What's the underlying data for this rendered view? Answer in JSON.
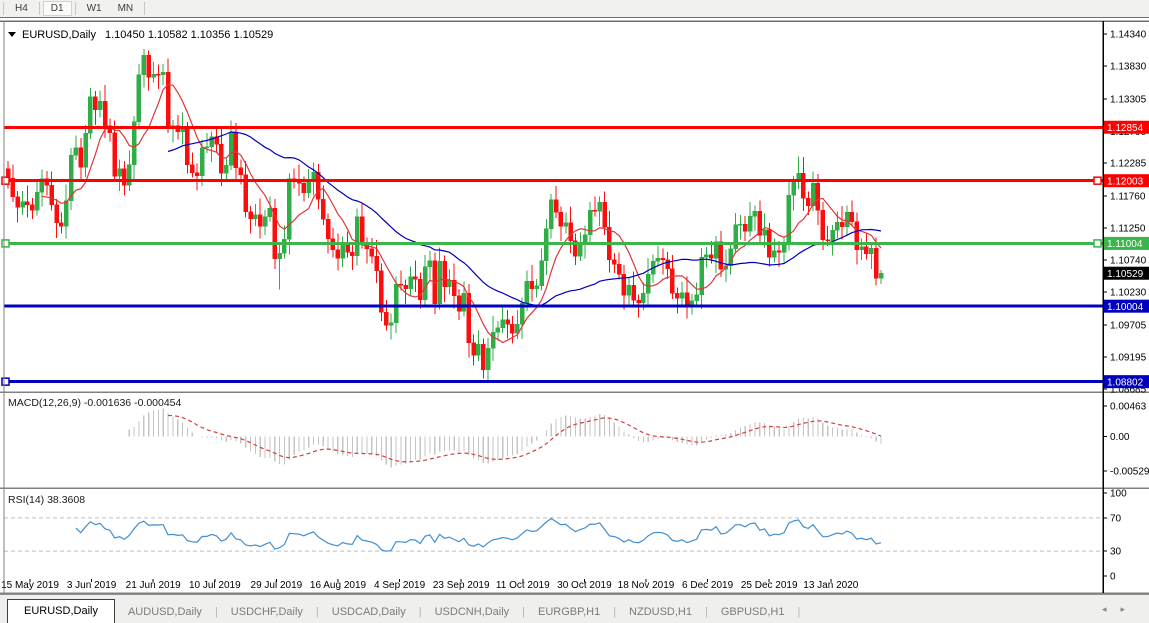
{
  "toolbar": {
    "buttons": [
      {
        "label": "H4",
        "active": false
      },
      {
        "label": "D1",
        "active": true
      },
      {
        "label": "W1",
        "active": false
      },
      {
        "label": "MN",
        "active": false
      }
    ]
  },
  "chart": {
    "title_marker": "▼",
    "symbol_label": "EURUSD,Daily",
    "ohlc_text": "1.10450 1.10582 1.10356 1.10529"
  },
  "chart_data": {
    "type": "candlestick",
    "symbol": "EURUSD",
    "timeframe": "Daily",
    "last_ohlc": {
      "open": 1.1045,
      "high": 1.10582,
      "low": 1.10356,
      "close": 1.10529
    },
    "y_axis": {
      "max": 1.14435,
      "min": 1.08653,
      "grid": false,
      "ticks": [
        "1.14340",
        "1.13830",
        "1.13305",
        "1.12790",
        "1.12285",
        "1.11760",
        "1.11250",
        "1.10740",
        "1.10230",
        "1.09705",
        "1.09195",
        "1.08685"
      ],
      "tick_values": [
        1.1434,
        1.1383,
        1.13305,
        1.1279,
        1.12285,
        1.1176,
        1.1125,
        1.1074,
        1.1023,
        1.09705,
        1.09195,
        1.08685
      ]
    },
    "x_labels": [
      "15 May 2019",
      "3 Jun 2019",
      "21 Jun 2019",
      "10 Jul 2019",
      "29 Jul 2019",
      "16 Aug 2019",
      "4 Sep 2019",
      "23 Sep 2019",
      "11 Oct 2019",
      "30 Oct 2019",
      "18 Nov 2019",
      "6 Dec 2019",
      "25 Dec 2019",
      "13 Jan 2020"
    ],
    "open_rule": "previous_close",
    "first_open": 1.1219,
    "closes": [
      1.1204,
      1.1175,
      1.1158,
      1.1167,
      1.1162,
      1.1153,
      1.1182,
      1.1203,
      1.1193,
      1.1162,
      1.1133,
      1.1128,
      1.1168,
      1.1241,
      1.1253,
      1.1222,
      1.1276,
      1.1334,
      1.1313,
      1.1327,
      1.1288,
      1.1277,
      1.1207,
      1.1219,
      1.1193,
      1.1226,
      1.1294,
      1.1369,
      1.14,
      1.1365,
      1.137,
      1.1369,
      1.1373,
      1.1285,
      1.1288,
      1.1278,
      1.1283,
      1.1226,
      1.1213,
      1.1208,
      1.1253,
      1.1254,
      1.127,
      1.1258,
      1.1212,
      1.1225,
      1.1277,
      1.1221,
      1.121,
      1.1151,
      1.114,
      1.1146,
      1.1128,
      1.1143,
      1.1156,
      1.1076,
      1.1085,
      1.1107,
      1.1203,
      1.12,
      1.1196,
      1.1181,
      1.12,
      1.1214,
      1.1171,
      1.1139,
      1.1108,
      1.109,
      1.1077,
      1.11,
      1.1086,
      1.1081,
      1.1143,
      1.1101,
      1.1092,
      1.108,
      1.1057,
      1.0991,
      1.097,
      1.0974,
      1.1035,
      1.1034,
      1.1028,
      1.1047,
      1.1043,
      1.1011,
      1.1063,
      1.1073,
      1.1004,
      1.1072,
      1.1031,
      1.1042,
      1.1017,
      1.0992,
      1.1021,
      1.0942,
      1.0922,
      1.094,
      1.0899,
      1.0933,
      1.0959,
      1.0966,
      1.0979,
      1.0972,
      1.0957,
      1.0972,
      1.1005,
      1.104,
      1.1028,
      1.1033,
      1.1073,
      1.1124,
      1.117,
      1.115,
      1.1128,
      1.1133,
      1.1105,
      1.108,
      1.1099,
      1.1114,
      1.1153,
      1.1152,
      1.1166,
      1.1126,
      1.1074,
      1.1067,
      1.1051,
      1.1018,
      1.1034,
      1.101,
      1.1006,
      1.1021,
      1.1051,
      1.1072,
      1.1077,
      1.1074,
      1.106,
      1.1021,
      1.1013,
      1.1022,
      1.1001,
      1.1009,
      1.1019,
      1.1078,
      1.1082,
      1.1077,
      1.1103,
      1.1059,
      1.1065,
      1.1092,
      1.113,
      1.1131,
      1.112,
      1.1144,
      1.1152,
      1.1113,
      1.1122,
      1.1078,
      1.1089,
      1.1086,
      1.1098,
      1.1177,
      1.1199,
      1.1212,
      1.1172,
      1.116,
      1.1196,
      1.1153,
      1.1106,
      1.1105,
      1.1121,
      1.1134,
      1.1127,
      1.115,
      1.1135,
      1.109,
      1.1095,
      1.1084,
      1.1093,
      1.1045,
      1.10529
    ],
    "wick_high_cycle": [
      0.0013,
      0.0022,
      0.0009,
      0.0017,
      0.0026,
      0.0011,
      0.0019,
      0.0015
    ],
    "wick_low_cycle": [
      0.0016,
      0.0009,
      0.0024,
      0.0012,
      0.002,
      0.0014,
      0.0008,
      0.0023
    ],
    "wick_overrides": {
      "17": {
        "high": 1.1348
      },
      "28": {
        "high": 1.141
      },
      "29": {
        "high": 1.1408,
        "low": 1.1344
      },
      "55": {
        "low": 1.106
      },
      "56": {
        "low": 1.1027
      },
      "98": {
        "low": 1.0885
      },
      "99": {
        "low": 1.0879
      },
      "112": {
        "high": 1.1179
      },
      "163": {
        "high": 1.1239
      },
      "180": {
        "high": 1.10582,
        "low": 1.10356
      }
    },
    "candle_up_color": "#2fae48",
    "candle_down_color": "#fd0d0d",
    "moving_averages": [
      {
        "name": "ma-fast",
        "method": "sma",
        "period": 8,
        "color": "#e03636"
      },
      {
        "name": "ma-slow",
        "method": "sma",
        "period": 34,
        "color": "#0000bb"
      }
    ],
    "h_lines": [
      {
        "price": 1.12854,
        "color": "#ff0000",
        "badge": "1.12854",
        "handles": []
      },
      {
        "price": 1.12003,
        "color": "#ff0000",
        "badge": "1.12003",
        "handles": [
          "left",
          "right"
        ]
      },
      {
        "price": 1.11004,
        "color": "#3cb44a",
        "badge": "1.11004",
        "handles": [
          "left",
          "right"
        ]
      },
      {
        "price": 1.10004,
        "color": "#0000c0",
        "badge": "1.10004",
        "handles": []
      },
      {
        "price": 1.08802,
        "color": "#0000c0",
        "badge": "1.08802",
        "handles": [
          "left"
        ]
      }
    ],
    "current_price": {
      "label": "1.10529",
      "price": 1.10529,
      "bg": "#000000",
      "fg": "#ffffff"
    },
    "indicators": {
      "macd": {
        "label": "MACD(12,26,9)",
        "values_label": "-0.001636 -0.000454",
        "fast": 12,
        "slow": 26,
        "signal": 9,
        "axis": {
          "max": 0.00463,
          "min": -0.005299,
          "ticks": [
            "0.00463",
            "0.00",
            "-0.005299"
          ],
          "tick_values": [
            0.00463,
            0,
            -0.005299
          ]
        },
        "histogram_color": "#c4c4c4",
        "signal_color": "#d23f3f"
      },
      "rsi": {
        "label": "RSI(14)",
        "value_label": "38.3608",
        "period": 14,
        "levels": [
          70,
          30
        ],
        "axis_ticks": [
          "100",
          "70",
          "30",
          "0"
        ],
        "axis_tick_values": [
          100,
          70,
          30,
          0
        ],
        "line_color": "#3f8fd2",
        "level_color": "#bdbdbd"
      }
    }
  },
  "tabs": {
    "items": [
      {
        "label": "EURUSD,Daily",
        "active": true
      },
      {
        "label": "AUDUSD,Daily",
        "active": false
      },
      {
        "label": "USDCHF,Daily",
        "active": false
      },
      {
        "label": "USDCAD,Daily",
        "active": false
      },
      {
        "label": "USDCNH,Daily",
        "active": false
      },
      {
        "label": "EURGBP,H1",
        "active": false
      },
      {
        "label": "NZDUSD,H1",
        "active": false
      },
      {
        "label": "GBPUSD,H1",
        "active": false
      }
    ],
    "separator": "|",
    "scroll_left": "◂",
    "scroll_right": "▸"
  }
}
